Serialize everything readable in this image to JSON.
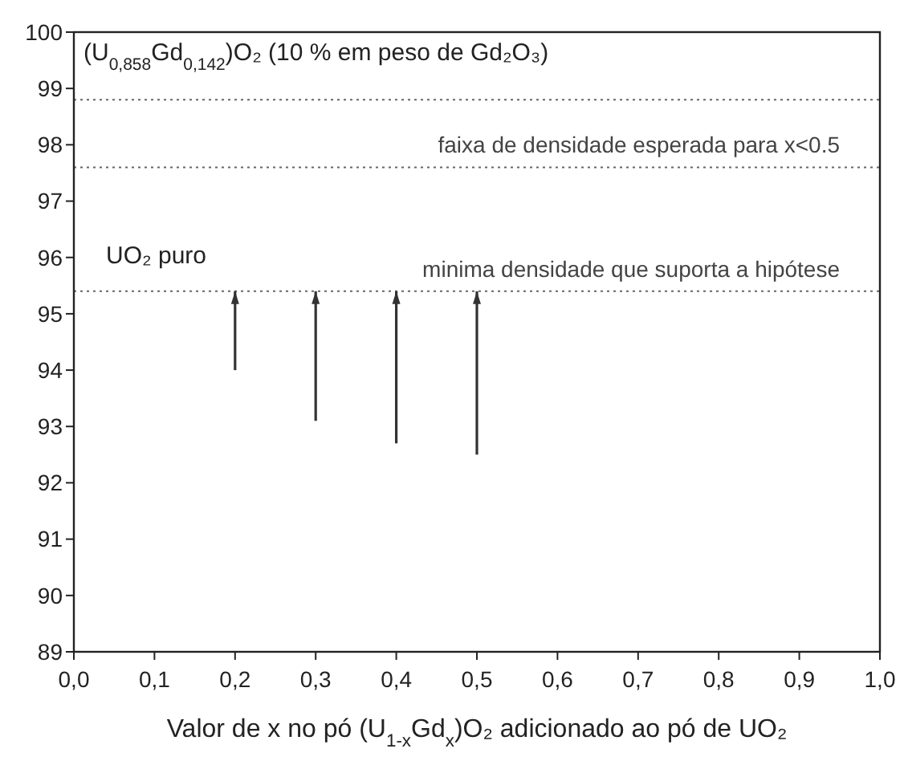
{
  "chart_data": {
    "type": "bar",
    "xlabel": "Valor de x no pó (U$_{1-x}$Gd$_{x}$)O₂ adicionado ao pó de UO₂",
    "x": [
      0.2,
      0.3,
      0.4,
      0.5
    ],
    "base": [
      94.0,
      93.1,
      92.7,
      92.5
    ],
    "values": [
      1.4,
      2.3,
      2.7,
      2.9
    ],
    "color": "#333333",
    "xlim": [
      0,
      1
    ],
    "xticks": [
      {
        "value": 0,
        "label": "0,0"
      },
      {
        "value": 0.1,
        "label": "0,1"
      },
      {
        "value": 0.2,
        "label": "0,2"
      },
      {
        "value": 0.3,
        "label": "0,3"
      },
      {
        "value": 0.4,
        "label": "0,4"
      },
      {
        "value": 0.5,
        "label": "0,5"
      },
      {
        "value": 0.6,
        "label": "0,6"
      },
      {
        "value": 0.7,
        "label": "0,7"
      },
      {
        "value": 0.8,
        "label": "0,8"
      },
      {
        "value": 0.9,
        "label": "0,9"
      },
      {
        "value": 1,
        "label": "1,0"
      }
    ],
    "ylim": [
      89,
      100
    ],
    "yticks": [
      89,
      90,
      91,
      92,
      93,
      94,
      95,
      96,
      97,
      98,
      99,
      100
    ],
    "ref_lines": [
      {
        "axis": "y",
        "value": 98.8,
        "line_style": "dotted",
        "color": "#666666"
      },
      {
        "axis": "y",
        "value": 97.6,
        "label": "faixa de densidade esperada para x<0.5",
        "line_style": "dotted",
        "color": "#666666"
      },
      {
        "axis": "y",
        "value": 95.4,
        "label": "minima densidade que suporta a hipótese",
        "line_style": "dotted",
        "color": "#666666"
      }
    ],
    "annotations": [
      "(U$_{0,858}$Gd$_{0,142}$)O₂  (10 % em peso de Gd₂O₃)",
      "UO₂ puro"
    ]
  }
}
